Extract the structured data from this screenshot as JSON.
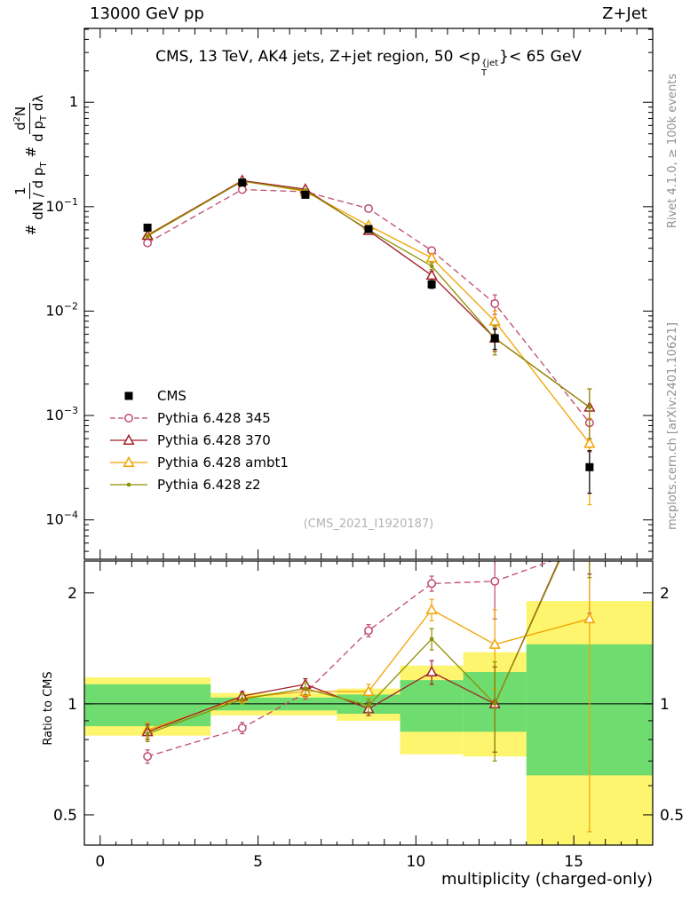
{
  "header": {
    "left": "13000 GeV pp",
    "right": "Z+Jet"
  },
  "panel_title": {
    "prefix": "CMS, 13 TeV, AK4 jets, Z+jet region, 50 <p",
    "sup": "{jet",
    "sub": "T",
    "suffix": "}< 65 GeV"
  },
  "watermark": "(CMS_2021_I1920187)",
  "side_notes": {
    "top_right": "Rivet 4.1.0, ≥ 100k events",
    "bottom_right": "mcplots.cern.ch [arXiv:2401.10621]"
  },
  "axis": {
    "x_label": "multiplicity (charged-only)",
    "ratio_label": "Ratio to CMS",
    "y_label": {
      "h1": "#",
      "num1": "1",
      "den1_a": "dN / d p",
      "den1_sub": "T",
      "h2": "#",
      "num2_a": "d",
      "num2_sup": "2",
      "num2_b": "N",
      "den2_a": "d p",
      "den2_sub": "T",
      "den2_b": " dλ"
    }
  },
  "chart_data": {
    "type": "line",
    "title": "CMS, 13 TeV, AK4 jets, Z+jet region, 50 <p_T^{jet}< 65 GeV",
    "xlabel": "multiplicity (charged-only)",
    "ylabel": "# 1/(dN/dp_T) # d2N/(dp_T dlambda)",
    "x": [
      1.5,
      4.5,
      6.5,
      8.5,
      10.5,
      12.5,
      15.5
    ],
    "xlim": [
      -0.5,
      17.5
    ],
    "ylim_top": [
      4.2e-05,
      5.1
    ],
    "ylim_ratio": [
      0.414,
      2.44
    ],
    "xticks": [
      {
        "v": 0,
        "label": "0"
      },
      {
        "v": 5,
        "label": "5"
      },
      {
        "v": 10,
        "label": "10"
      },
      {
        "v": 15,
        "label": "15"
      }
    ],
    "yticks_top": [
      {
        "v": 1,
        "base": "1",
        "exp": ""
      },
      {
        "v": 0.1,
        "base": "10",
        "exp": "−1"
      },
      {
        "v": 0.01,
        "base": "10",
        "exp": "−2"
      },
      {
        "v": 0.001,
        "base": "10",
        "exp": "−3"
      },
      {
        "v": 0.0001,
        "base": "10",
        "exp": "−4"
      }
    ],
    "yticks_ratio": [
      {
        "v": 2,
        "label": "2"
      },
      {
        "v": 1,
        "label": "1"
      },
      {
        "v": 0.5,
        "label": "0.5"
      }
    ],
    "band_colors": {
      "yellow": "#fdf56e",
      "green": "#6fdc6f"
    },
    "bands": {
      "edges": [
        -0.5,
        3.5,
        5.5,
        7.5,
        9.5,
        11.5,
        13.5,
        17.5
      ],
      "yellow_lo": [
        0.82,
        0.93,
        0.93,
        0.9,
        0.73,
        0.72,
        0.3
      ],
      "yellow_hi": [
        1.18,
        1.07,
        1.07,
        1.1,
        1.27,
        1.38,
        1.9
      ],
      "green_lo": [
        0.87,
        0.96,
        0.96,
        0.94,
        0.84,
        0.84,
        0.64
      ],
      "green_hi": [
        1.13,
        1.04,
        1.04,
        1.06,
        1.16,
        1.22,
        1.45
      ]
    },
    "series": [
      {
        "name": "CMS",
        "color": "#000000",
        "line": "none",
        "marker": "square",
        "values": [
          0.063,
          0.17,
          0.13,
          0.061,
          0.018,
          0.0055,
          0.00032
        ],
        "yerr": [
          0.003,
          0.006,
          0.005,
          0.003,
          0.0015,
          0.0012,
          0.00014
        ],
        "ratio": null,
        "ratio_err": null
      },
      {
        "name": "Pythia 6.428 345",
        "color": "#bf4b6e",
        "line": "dashed",
        "marker": "circle-open",
        "values": [
          0.045,
          0.146,
          0.139,
          0.096,
          0.038,
          0.0118,
          0.00085
        ],
        "yerr": [
          0.002,
          0.004,
          0.004,
          0.003,
          0.002,
          0.0025,
          0.0004
        ],
        "ratio": [
          0.72,
          0.86,
          1.07,
          1.58,
          2.12,
          2.15,
          2.66
        ],
        "ratio_err": [
          0.03,
          0.03,
          0.04,
          0.06,
          0.1,
          0.45,
          0.9
        ]
      },
      {
        "name": "Pythia 6.428 370",
        "color": "#a02128",
        "line": "solid",
        "marker": "triangle-open",
        "values": [
          0.053,
          0.178,
          0.147,
          0.059,
          0.022,
          0.0055,
          0.0012
        ],
        "yerr": [
          0.002,
          0.005,
          0.004,
          0.003,
          0.002,
          0.0014,
          0.0006
        ],
        "ratio": [
          0.84,
          1.05,
          1.13,
          0.97,
          1.22,
          1.0,
          3.75
        ],
        "ratio_err": [
          0.04,
          0.03,
          0.04,
          0.04,
          0.09,
          0.26,
          1.5
        ]
      },
      {
        "name": "Pythia 6.428 ambt1",
        "color": "#f2a200",
        "line": "solid",
        "marker": "triangle-open",
        "values": [
          0.0536,
          0.177,
          0.14,
          0.066,
          0.0324,
          0.008,
          0.00054
        ],
        "yerr": [
          0.002,
          0.005,
          0.004,
          0.003,
          0.002,
          0.002,
          0.0004
        ],
        "ratio": [
          0.85,
          1.04,
          1.08,
          1.08,
          1.8,
          1.45,
          1.7
        ],
        "ratio_err": [
          0.04,
          0.03,
          0.04,
          0.05,
          0.12,
          0.35,
          1.25
        ]
      },
      {
        "name": "Pythia 6.428 z2",
        "color": "#8f8f00",
        "line": "solid",
        "marker": "dot",
        "values": [
          0.0523,
          0.175,
          0.143,
          0.06,
          0.027,
          0.0055,
          0.0012
        ],
        "yerr": [
          0.002,
          0.005,
          0.004,
          0.003,
          0.002,
          0.0017,
          0.0006
        ],
        "ratio": [
          0.83,
          1.03,
          1.1,
          0.99,
          1.5,
          1.0,
          3.7
        ],
        "ratio_err": [
          0.04,
          0.03,
          0.04,
          0.04,
          0.1,
          0.3,
          1.5
        ]
      }
    ]
  }
}
